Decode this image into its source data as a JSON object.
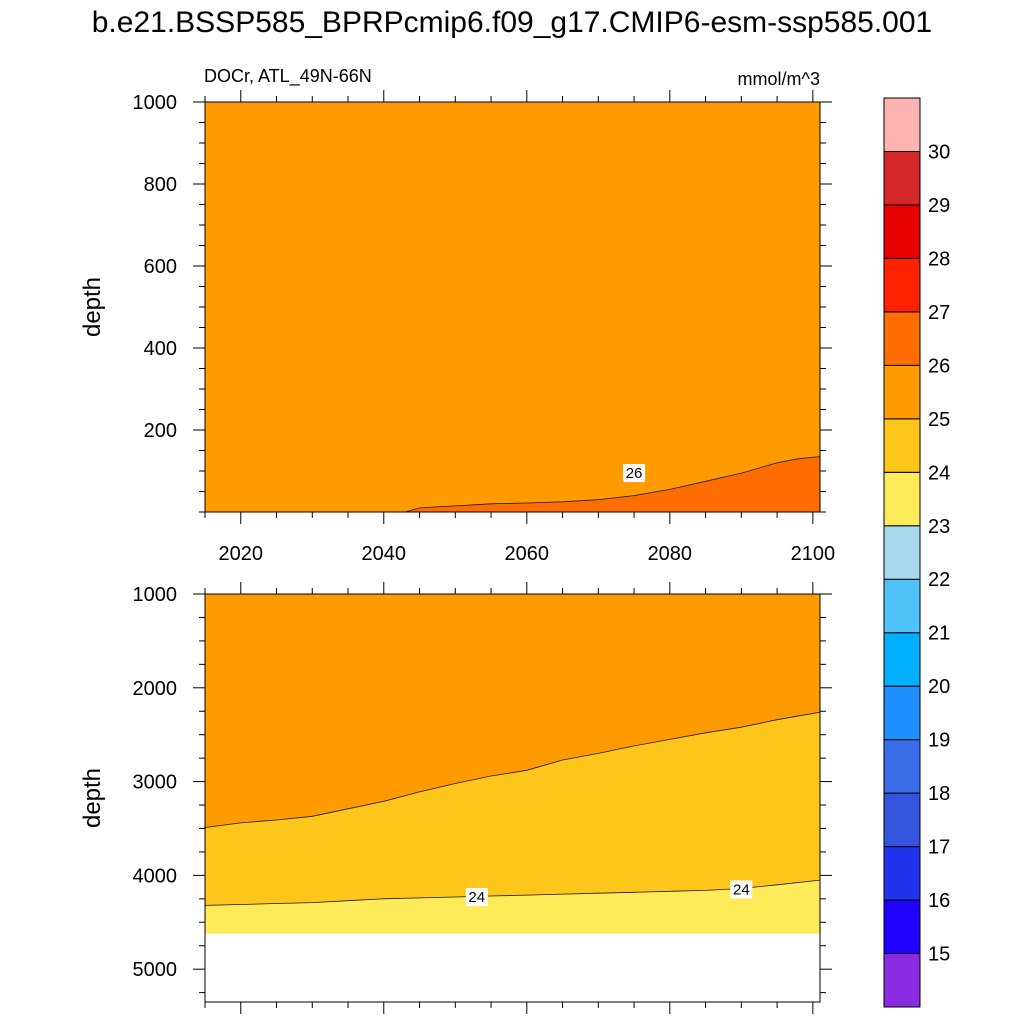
{
  "title": "b.e21.BSSP585_BPRPcmip6.f09_g17.CMIP6-esm-ssp585.001",
  "colors": {
    "levels_palette": [
      "#8a2be2",
      "#2200ff",
      "#2233ee",
      "#3355dd",
      "#3a6ee8",
      "#1e90ff",
      "#00b0ff",
      "#4fc3f7",
      "#a6d8ee",
      "#ffffcc",
      "#ffea5a",
      "#fec51b",
      "#ff9a00",
      "#ff6c00",
      "#ff2200",
      "#e60000",
      "#d42828",
      "#ffb4b4"
    ],
    "contour_line": "#1a1a1a"
  },
  "chart_data": [
    {
      "type": "heatmap",
      "subtype": "filled-contour",
      "panel": "upper",
      "title_left": "DOCr, ATL_49N-66N",
      "title_right": "mmol/m^3",
      "xlabel": "",
      "ylabel": "depth",
      "xlim": [
        2015,
        2101
      ],
      "ylim": [
        1000,
        0
      ],
      "xticks": [
        2020,
        2040,
        2060,
        2080,
        2100
      ],
      "yticks": [
        200,
        400,
        600,
        800,
        1000
      ],
      "background_level": "25-26",
      "contours": [
        {
          "level": 26,
          "label": "26",
          "label_at": {
            "x": 2075,
            "y": 95
          },
          "fill_above_line": "26-27",
          "points": [
            [
              2043.0,
              0
            ],
            [
              2045,
              10
            ],
            [
              2050,
              15
            ],
            [
              2055,
              20
            ],
            [
              2060,
              22
            ],
            [
              2065,
              25
            ],
            [
              2070,
              30
            ],
            [
              2075,
              40
            ],
            [
              2080,
              55
            ],
            [
              2085,
              75
            ],
            [
              2090,
              95
            ],
            [
              2095,
              120
            ],
            [
              2098,
              130
            ],
            [
              2101,
              135
            ]
          ]
        }
      ]
    },
    {
      "type": "heatmap",
      "subtype": "filled-contour",
      "panel": "lower",
      "xlabel": "",
      "ylabel": "depth",
      "xlim": [
        2015,
        2101
      ],
      "ylim": [
        1000,
        5350
      ],
      "xticks": [
        2020,
        2040,
        2060,
        2080,
        2100
      ],
      "yticks": [
        1000,
        2000,
        3000,
        4000,
        5000
      ],
      "background_level": "25-26",
      "data_bottom_depth": 4620,
      "contours": [
        {
          "level": 25,
          "label": "",
          "points": [
            [
              2015,
              3490
            ],
            [
              2020,
              3440
            ],
            [
              2025,
              3410
            ],
            [
              2030,
              3370
            ],
            [
              2035,
              3290
            ],
            [
              2040,
              3210
            ],
            [
              2045,
              3110
            ],
            [
              2050,
              3020
            ],
            [
              2055,
              2940
            ],
            [
              2060,
              2880
            ],
            [
              2065,
              2770
            ],
            [
              2070,
              2700
            ],
            [
              2075,
              2620
            ],
            [
              2080,
              2550
            ],
            [
              2085,
              2480
            ],
            [
              2090,
              2420
            ],
            [
              2095,
              2340
            ],
            [
              2101,
              2260
            ]
          ]
        },
        {
          "level": 24,
          "label": "24",
          "label_at": [
            {
              "x": 2053,
              "y": 4230
            },
            {
              "x": 2090,
              "y": 4150
            }
          ],
          "points": [
            [
              2015,
              4320
            ],
            [
              2020,
              4310
            ],
            [
              2025,
              4300
            ],
            [
              2030,
              4290
            ],
            [
              2035,
              4270
            ],
            [
              2040,
              4250
            ],
            [
              2045,
              4240
            ],
            [
              2050,
              4230
            ],
            [
              2055,
              4220
            ],
            [
              2060,
              4210
            ],
            [
              2065,
              4200
            ],
            [
              2070,
              4190
            ],
            [
              2075,
              4180
            ],
            [
              2080,
              4170
            ],
            [
              2085,
              4160
            ],
            [
              2090,
              4140
            ],
            [
              2095,
              4100
            ],
            [
              2101,
              4050
            ]
          ]
        }
      ],
      "fills": [
        "25-26",
        "24-25",
        "23-24"
      ]
    }
  ],
  "colorbar": {
    "labels": [
      "15",
      "16",
      "17",
      "18",
      "19",
      "20",
      "21",
      "22",
      "23",
      "24",
      "25",
      "26",
      "27",
      "28",
      "29",
      "30"
    ],
    "bins": [
      {
        "range": "<15",
        "color": "#8a2be2"
      },
      {
        "range": "15-16",
        "color": "#2200ff"
      },
      {
        "range": "16-17",
        "color": "#2233ee"
      },
      {
        "range": "17-18",
        "color": "#3355dd"
      },
      {
        "range": "18-19",
        "color": "#3a6ee8"
      },
      {
        "range": "19-20",
        "color": "#1e90ff"
      },
      {
        "range": "20-21",
        "color": "#00b0ff"
      },
      {
        "range": "21-22",
        "color": "#4fc3f7"
      },
      {
        "range": "22-23",
        "color": "#a6d8ee"
      },
      {
        "range": "23-24",
        "color": "#ffea5a"
      },
      {
        "range": "24-25",
        "color": "#fec51b"
      },
      {
        "range": "25-26",
        "color": "#ff9a00"
      },
      {
        "range": "26-27",
        "color": "#ff6c00"
      },
      {
        "range": "27-28",
        "color": "#ff2200"
      },
      {
        "range": "28-29",
        "color": "#e60000"
      },
      {
        "range": "29-30",
        "color": "#d42828"
      },
      {
        "range": ">30",
        "color": "#ffb4b4"
      }
    ]
  }
}
